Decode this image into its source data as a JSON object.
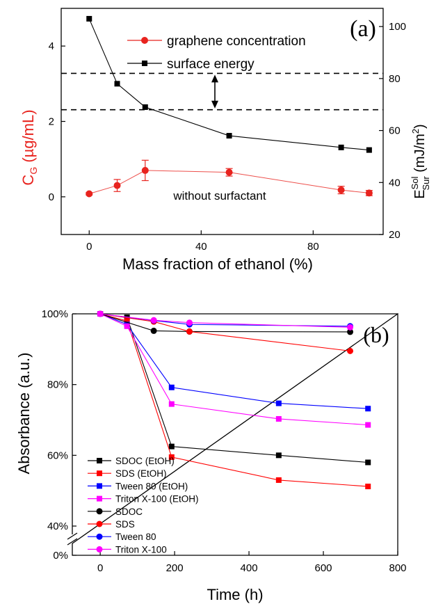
{
  "chart_data": [
    {
      "panel_label": "(a)",
      "type": "line",
      "xlabel": "Mass fraction of ethanol (%)",
      "ylabel_left": {
        "main": "C",
        "sub": "G",
        "unit": " (µg/mL)",
        "color": "#e8231e"
      },
      "ylabel_right": {
        "main": "E",
        "sup": "Sol",
        "sub": "Sur",
        "unit": " (mJ/m",
        "unit_sup": "2",
        "unit_end": ")"
      },
      "xlim": [
        -10,
        105
      ],
      "ylim_left": [
        -1.0,
        5.0
      ],
      "ylim_right": [
        20,
        107
      ],
      "x_ticks": [
        0,
        40,
        80
      ],
      "y_left_ticks": [
        0,
        2,
        4
      ],
      "y_right_ticks": [
        20,
        40,
        60,
        80,
        100
      ],
      "reference_lines_right_axis": [
        82,
        68
      ],
      "annotation": "without surfactant",
      "series": [
        {
          "name": "graphene concentration",
          "axis": "left",
          "color": "#e8231e",
          "marker": "circle",
          "x": [
            0,
            10,
            20,
            50,
            90,
            100
          ],
          "y": [
            0.08,
            0.3,
            0.7,
            0.65,
            0.18,
            0.1
          ],
          "error": [
            0.03,
            0.16,
            0.27,
            0.1,
            0.1,
            0.07
          ]
        },
        {
          "name": "surface energy",
          "axis": "right",
          "color": "#000000",
          "marker": "square",
          "x": [
            0,
            10,
            20,
            50,
            90,
            100
          ],
          "y": [
            103,
            78,
            69,
            58,
            53.5,
            52.5
          ]
        }
      ]
    },
    {
      "panel_label": "(b)",
      "type": "line",
      "xlabel": "Time (h)",
      "ylabel": "Absorbance (a.u.)",
      "xlim": [
        -75,
        800
      ],
      "x_ticks": [
        0,
        200,
        400,
        600,
        800
      ],
      "y_ticks": [
        "0%",
        "40%",
        "60%",
        "80%",
        "100%"
      ],
      "legend_position": "bottom-left",
      "series": [
        {
          "name": "SDOC (EtOH)",
          "color": "#000000",
          "marker": "square",
          "x": [
            0,
            72,
            192,
            480,
            720
          ],
          "y": [
            100,
            99,
            62.5,
            60,
            58
          ]
        },
        {
          "name": "SDS (EtOH)",
          "color": "#ff0000",
          "marker": "square",
          "x": [
            0,
            72,
            192,
            480,
            720
          ],
          "y": [
            100,
            98,
            59.5,
            53,
            51.2
          ]
        },
        {
          "name": "Tween 80 (EtOH)",
          "color": "#0000ff",
          "marker": "square",
          "x": [
            0,
            72,
            192,
            480,
            720
          ],
          "y": [
            100,
            97,
            79.2,
            74.7,
            73.2
          ]
        },
        {
          "name": "Triton X-100 (EtOH)",
          "color": "#ff00ff",
          "marker": "square",
          "x": [
            0,
            72,
            192,
            480,
            720
          ],
          "y": [
            100,
            96.5,
            74.5,
            70.3,
            68.6
          ]
        },
        {
          "name": "SDOC",
          "color": "#000000",
          "marker": "circle",
          "x": [
            0,
            144,
            240,
            672
          ],
          "y": [
            100,
            95.2,
            95,
            94.9
          ]
        },
        {
          "name": "SDS",
          "color": "#ff0000",
          "marker": "circle",
          "x": [
            0,
            144,
            240,
            672
          ],
          "y": [
            100,
            97.8,
            95,
            89.5
          ]
        },
        {
          "name": "Tween 80",
          "color": "#0000ff",
          "marker": "circle",
          "x": [
            0,
            144,
            240,
            672
          ],
          "y": [
            100,
            98.1,
            97,
            96.5
          ]
        },
        {
          "name": "Triton X-100",
          "color": "#ff00ff",
          "marker": "circle",
          "x": [
            0,
            144,
            240,
            672
          ],
          "y": [
            100,
            98.2,
            97.5,
            96.2
          ]
        }
      ]
    }
  ]
}
